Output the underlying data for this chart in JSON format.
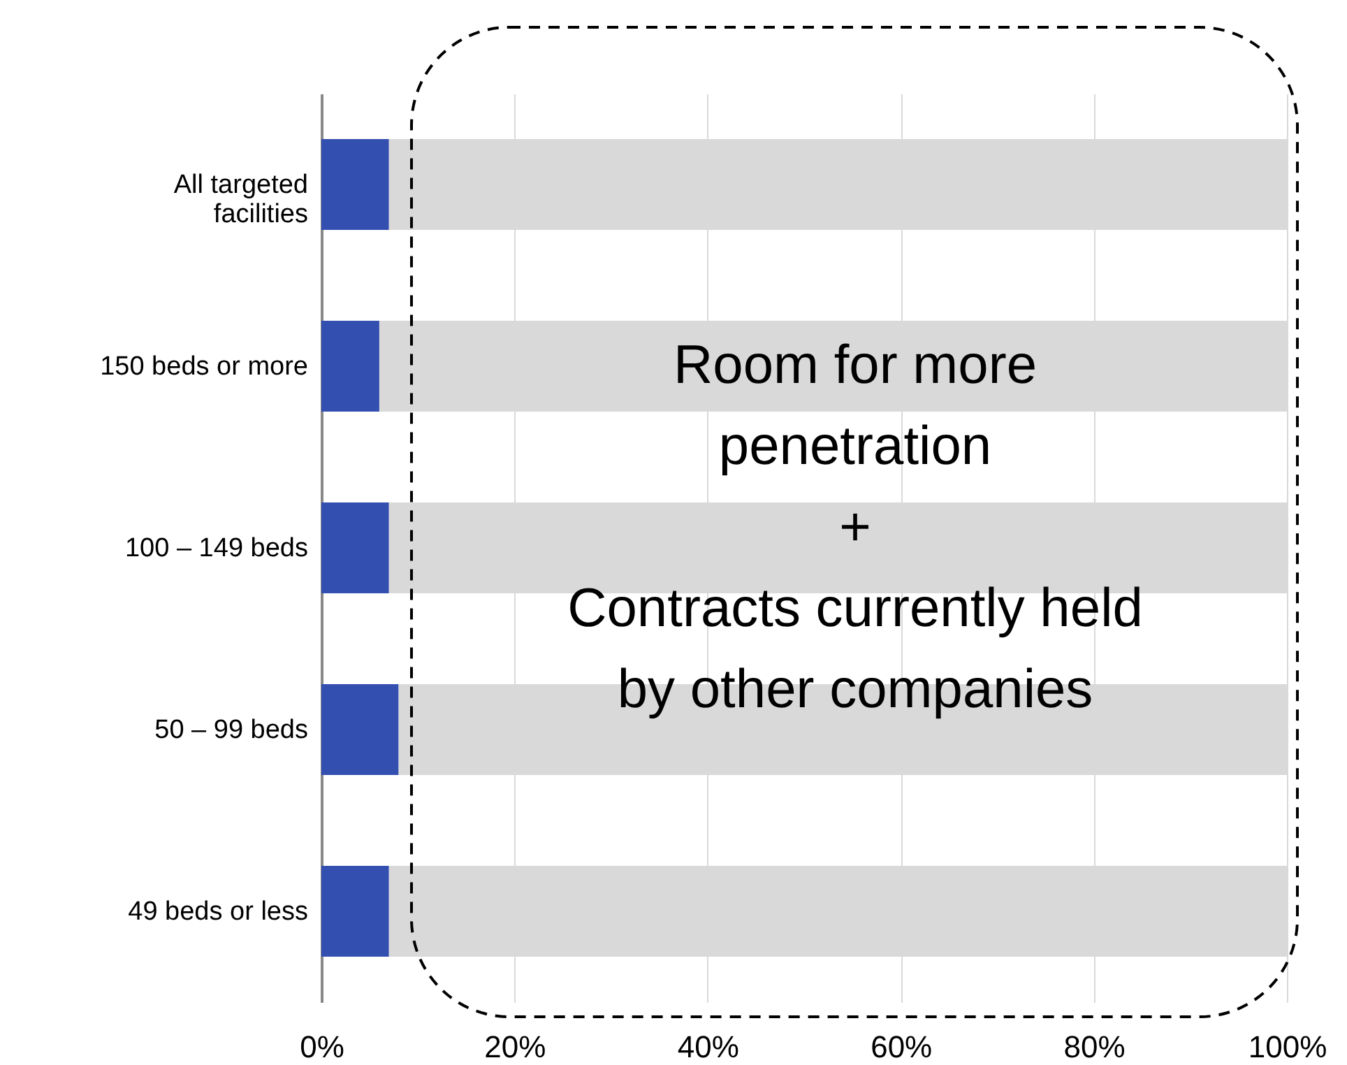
{
  "chart_data": {
    "type": "bar",
    "orientation": "horizontal",
    "stacked": true,
    "categories": [
      "All targeted facilities",
      "150 beds or more",
      "100 – 149 beds",
      "50 – 99 beds",
      "49 beds or less"
    ],
    "series": [
      {
        "color": "#334fb0",
        "values": [
          7,
          6,
          7,
          8,
          7
        ]
      },
      {
        "color": "#d9d9d9",
        "values": [
          93,
          94,
          93,
          92,
          93
        ]
      }
    ],
    "xlim": [
      0,
      100
    ],
    "xticks": [
      {
        "value": 0,
        "label": "0%"
      },
      {
        "value": 20,
        "label": "20%"
      },
      {
        "value": 40,
        "label": "40%"
      },
      {
        "value": 60,
        "label": "60%"
      },
      {
        "value": 80,
        "label": "80%"
      },
      {
        "value": 100,
        "label": "100%"
      }
    ],
    "grid": "x",
    "legend": false,
    "annotations": [
      "Room for more\npenetration\n+\nContracts currently held\nby other companies"
    ]
  }
}
